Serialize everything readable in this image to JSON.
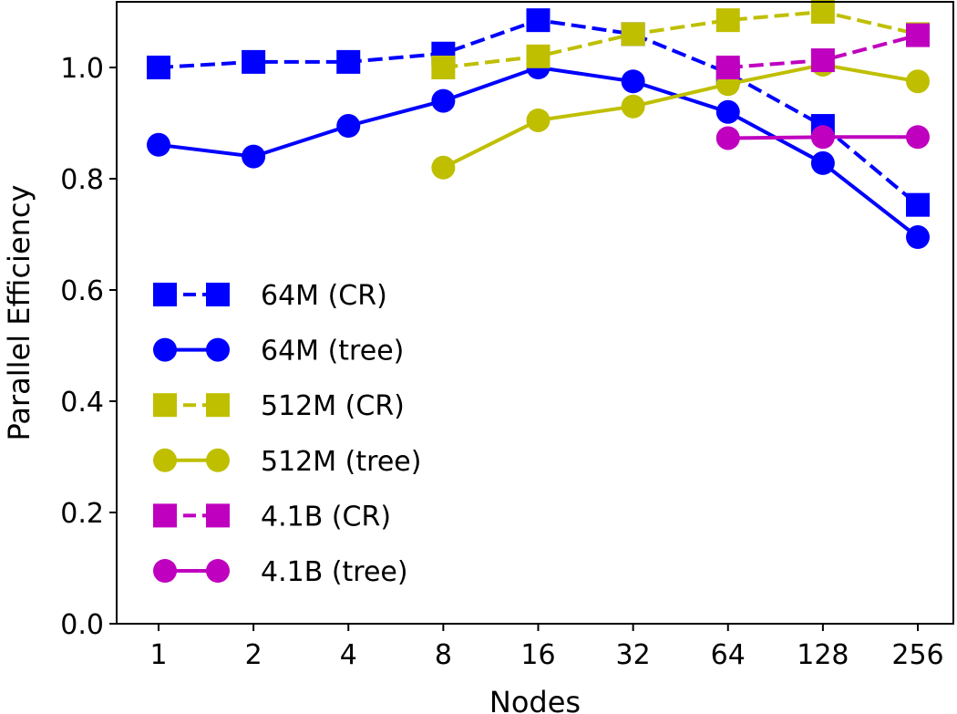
{
  "chart_data": {
    "type": "line",
    "title": "",
    "xlabel": "Nodes",
    "ylabel": "Parallel Efficiency",
    "x_scale": "log2",
    "categories": [
      "1",
      "2",
      "4",
      "8",
      "16",
      "32",
      "64",
      "128",
      "256"
    ],
    "y_ticks": [
      "0.0",
      "0.2",
      "0.4",
      "0.6",
      "0.8",
      "1.0"
    ],
    "ylim": [
      0.0,
      1.1
    ],
    "grid": false,
    "legend_position": "lower-left",
    "series": [
      {
        "name": "64M (CR)",
        "color": "#0000ff",
        "line": "dashed",
        "marker": "square",
        "x": [
          1,
          2,
          4,
          8,
          16,
          32,
          64,
          128,
          256
        ],
        "y": [
          1.0,
          1.01,
          1.01,
          1.025,
          1.085,
          1.06,
          0.99,
          0.895,
          0.753
        ]
      },
      {
        "name": "64M (tree)",
        "color": "#0000ff",
        "line": "solid",
        "marker": "circle",
        "x": [
          1,
          2,
          4,
          8,
          16,
          32,
          64,
          128,
          256
        ],
        "y": [
          0.861,
          0.84,
          0.895,
          0.94,
          1.0,
          0.975,
          0.92,
          0.828,
          0.695
        ]
      },
      {
        "name": "512M (CR)",
        "color": "#bfbf00",
        "line": "dashed",
        "marker": "square",
        "x": [
          8,
          16,
          32,
          64,
          128,
          256
        ],
        "y": [
          1.0,
          1.02,
          1.06,
          1.085,
          1.1,
          1.06
        ]
      },
      {
        "name": "512M (tree)",
        "color": "#bfbf00",
        "line": "solid",
        "marker": "circle",
        "x": [
          8,
          16,
          32,
          64,
          128,
          256
        ],
        "y": [
          0.82,
          0.905,
          0.93,
          0.97,
          1.005,
          0.975
        ]
      },
      {
        "name": "4.1B (CR)",
        "color": "#bf00bf",
        "line": "dashed",
        "marker": "square",
        "x": [
          64,
          128,
          256
        ],
        "y": [
          1.0,
          1.013,
          1.058
        ]
      },
      {
        "name": "4.1B (tree)",
        "color": "#bf00bf",
        "line": "solid",
        "marker": "circle",
        "x": [
          64,
          128,
          256
        ],
        "y": [
          0.873,
          0.875,
          0.875
        ]
      }
    ]
  }
}
